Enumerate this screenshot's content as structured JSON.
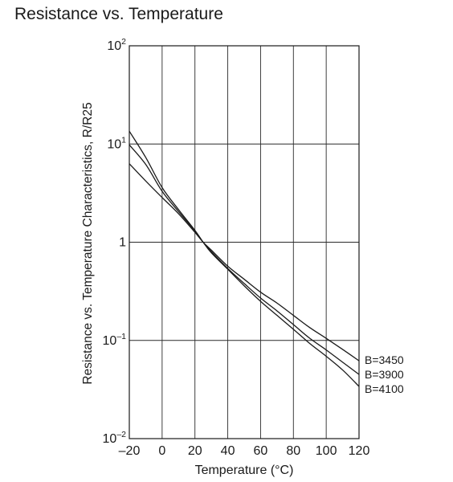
{
  "chart_data": {
    "type": "line",
    "title": "Resistance vs. Temperature",
    "xlabel": "Temperature (°C)",
    "ylabel": "Resistance vs. Temperature Characteristics, R/R25",
    "xlim": [
      -20,
      120
    ],
    "ylim": [
      0.01,
      100
    ],
    "y_scale": "log",
    "grid": true,
    "x_ticks": [
      -20,
      0,
      20,
      40,
      60,
      80,
      100,
      120
    ],
    "x_tick_labels": [
      "–20",
      "0",
      "20",
      "40",
      "60",
      "80",
      "100",
      "120"
    ],
    "y_ticks": [
      {
        "value": 0.01,
        "base": "10",
        "exp": "–2"
      },
      {
        "value": 0.1,
        "base": "10",
        "exp": "–1"
      },
      {
        "value": 1,
        "base": "1",
        "exp": ""
      },
      {
        "value": 10,
        "base": "10",
        "exp": "1"
      },
      {
        "value": 100,
        "base": "10",
        "exp": "2"
      }
    ],
    "x": [
      -20,
      -10,
      0,
      10,
      20,
      25,
      30,
      40,
      50,
      60,
      70,
      80,
      90,
      100,
      110,
      120
    ],
    "series": [
      {
        "name": "B=3450",
        "values": [
          6.3,
          4.2,
          2.85,
          1.95,
          1.26,
          1.0,
          0.83,
          0.57,
          0.42,
          0.31,
          0.24,
          0.18,
          0.135,
          0.105,
          0.081,
          0.062
        ]
      },
      {
        "name": "B=3900",
        "values": [
          9.8,
          6.2,
          3.3,
          2.05,
          1.3,
          1.0,
          0.8,
          0.54,
          0.38,
          0.27,
          0.2,
          0.145,
          0.105,
          0.08,
          0.06,
          0.045
        ]
      },
      {
        "name": "B=4100",
        "values": [
          13.5,
          7.3,
          3.6,
          2.15,
          1.32,
          1.0,
          0.78,
          0.53,
          0.36,
          0.25,
          0.18,
          0.13,
          0.093,
          0.069,
          0.05,
          0.034
        ]
      }
    ]
  }
}
